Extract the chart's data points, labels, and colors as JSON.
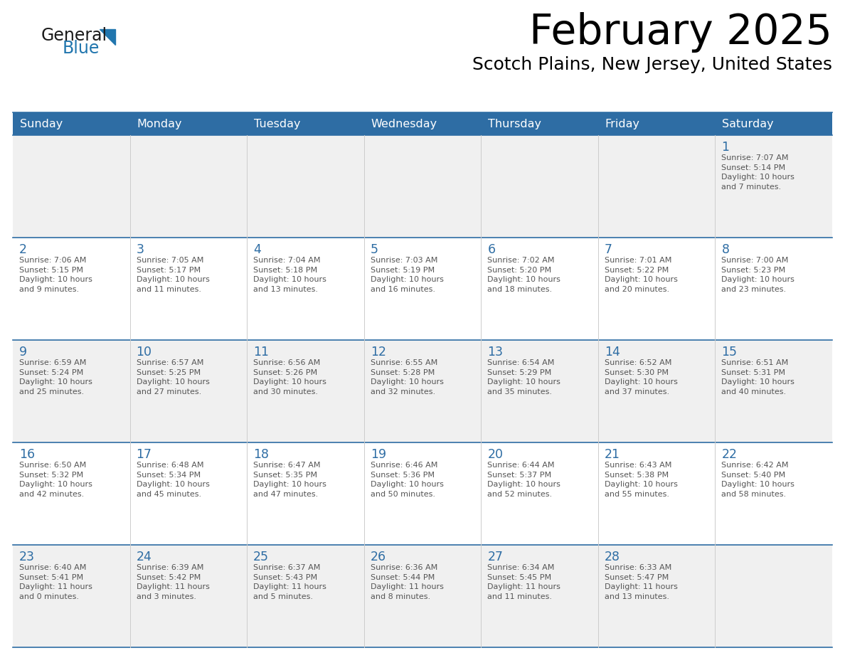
{
  "title": "February 2025",
  "subtitle": "Scotch Plains, New Jersey, United States",
  "header_bg": "#2E6DA4",
  "header_text_color": "#FFFFFF",
  "cell_bg_odd": "#F0F0F0",
  "cell_bg_even": "#FFFFFF",
  "day_number_color": "#2E6DA4",
  "detail_text_color": "#555555",
  "border_color": "#2E6DA4",
  "days_of_week": [
    "Sunday",
    "Monday",
    "Tuesday",
    "Wednesday",
    "Thursday",
    "Friday",
    "Saturday"
  ],
  "weeks": [
    [
      {
        "day": null,
        "details": null
      },
      {
        "day": null,
        "details": null
      },
      {
        "day": null,
        "details": null
      },
      {
        "day": null,
        "details": null
      },
      {
        "day": null,
        "details": null
      },
      {
        "day": null,
        "details": null
      },
      {
        "day": "1",
        "details": "Sunrise: 7:07 AM\nSunset: 5:14 PM\nDaylight: 10 hours\nand 7 minutes."
      }
    ],
    [
      {
        "day": "2",
        "details": "Sunrise: 7:06 AM\nSunset: 5:15 PM\nDaylight: 10 hours\nand 9 minutes."
      },
      {
        "day": "3",
        "details": "Sunrise: 7:05 AM\nSunset: 5:17 PM\nDaylight: 10 hours\nand 11 minutes."
      },
      {
        "day": "4",
        "details": "Sunrise: 7:04 AM\nSunset: 5:18 PM\nDaylight: 10 hours\nand 13 minutes."
      },
      {
        "day": "5",
        "details": "Sunrise: 7:03 AM\nSunset: 5:19 PM\nDaylight: 10 hours\nand 16 minutes."
      },
      {
        "day": "6",
        "details": "Sunrise: 7:02 AM\nSunset: 5:20 PM\nDaylight: 10 hours\nand 18 minutes."
      },
      {
        "day": "7",
        "details": "Sunrise: 7:01 AM\nSunset: 5:22 PM\nDaylight: 10 hours\nand 20 minutes."
      },
      {
        "day": "8",
        "details": "Sunrise: 7:00 AM\nSunset: 5:23 PM\nDaylight: 10 hours\nand 23 minutes."
      }
    ],
    [
      {
        "day": "9",
        "details": "Sunrise: 6:59 AM\nSunset: 5:24 PM\nDaylight: 10 hours\nand 25 minutes."
      },
      {
        "day": "10",
        "details": "Sunrise: 6:57 AM\nSunset: 5:25 PM\nDaylight: 10 hours\nand 27 minutes."
      },
      {
        "day": "11",
        "details": "Sunrise: 6:56 AM\nSunset: 5:26 PM\nDaylight: 10 hours\nand 30 minutes."
      },
      {
        "day": "12",
        "details": "Sunrise: 6:55 AM\nSunset: 5:28 PM\nDaylight: 10 hours\nand 32 minutes."
      },
      {
        "day": "13",
        "details": "Sunrise: 6:54 AM\nSunset: 5:29 PM\nDaylight: 10 hours\nand 35 minutes."
      },
      {
        "day": "14",
        "details": "Sunrise: 6:52 AM\nSunset: 5:30 PM\nDaylight: 10 hours\nand 37 minutes."
      },
      {
        "day": "15",
        "details": "Sunrise: 6:51 AM\nSunset: 5:31 PM\nDaylight: 10 hours\nand 40 minutes."
      }
    ],
    [
      {
        "day": "16",
        "details": "Sunrise: 6:50 AM\nSunset: 5:32 PM\nDaylight: 10 hours\nand 42 minutes."
      },
      {
        "day": "17",
        "details": "Sunrise: 6:48 AM\nSunset: 5:34 PM\nDaylight: 10 hours\nand 45 minutes."
      },
      {
        "day": "18",
        "details": "Sunrise: 6:47 AM\nSunset: 5:35 PM\nDaylight: 10 hours\nand 47 minutes."
      },
      {
        "day": "19",
        "details": "Sunrise: 6:46 AM\nSunset: 5:36 PM\nDaylight: 10 hours\nand 50 minutes."
      },
      {
        "day": "20",
        "details": "Sunrise: 6:44 AM\nSunset: 5:37 PM\nDaylight: 10 hours\nand 52 minutes."
      },
      {
        "day": "21",
        "details": "Sunrise: 6:43 AM\nSunset: 5:38 PM\nDaylight: 10 hours\nand 55 minutes."
      },
      {
        "day": "22",
        "details": "Sunrise: 6:42 AM\nSunset: 5:40 PM\nDaylight: 10 hours\nand 58 minutes."
      }
    ],
    [
      {
        "day": "23",
        "details": "Sunrise: 6:40 AM\nSunset: 5:41 PM\nDaylight: 11 hours\nand 0 minutes."
      },
      {
        "day": "24",
        "details": "Sunrise: 6:39 AM\nSunset: 5:42 PM\nDaylight: 11 hours\nand 3 minutes."
      },
      {
        "day": "25",
        "details": "Sunrise: 6:37 AM\nSunset: 5:43 PM\nDaylight: 11 hours\nand 5 minutes."
      },
      {
        "day": "26",
        "details": "Sunrise: 6:36 AM\nSunset: 5:44 PM\nDaylight: 11 hours\nand 8 minutes."
      },
      {
        "day": "27",
        "details": "Sunrise: 6:34 AM\nSunset: 5:45 PM\nDaylight: 11 hours\nand 11 minutes."
      },
      {
        "day": "28",
        "details": "Sunrise: 6:33 AM\nSunset: 5:47 PM\nDaylight: 11 hours\nand 13 minutes."
      },
      {
        "day": null,
        "details": null
      }
    ]
  ],
  "logo_text_general": "General",
  "logo_text_blue": "Blue",
  "logo_color_general": "#1a1a1a",
  "logo_color_blue": "#2176ae"
}
